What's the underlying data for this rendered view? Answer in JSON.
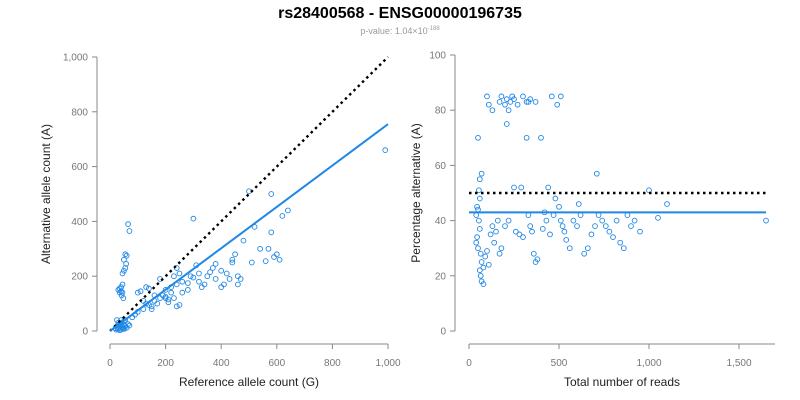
{
  "header": {
    "title": "rs28400568 - ENSG00000196735",
    "pvalue_prefix": "p-value: 1.04",
    "pvalue_times": "×",
    "pvalue_base": "10",
    "pvalue_exp": "-188"
  },
  "colors": {
    "points": "#1f87e5",
    "fit": "#1f87e5",
    "reference": "#000000",
    "axis": "#888888",
    "text": "#777777"
  },
  "chart_data": [
    {
      "type": "scatter",
      "xlabel": "Reference allele count (G)",
      "ylabel": "Alternative allele count (A)",
      "xlim": [
        0,
        1000
      ],
      "ylim": [
        0,
        1000
      ],
      "xticks": [
        0,
        200,
        400,
        600,
        800,
        1000
      ],
      "yticks": [
        0,
        200,
        400,
        600,
        800,
        1000
      ],
      "xtick_labels": [
        "0",
        "200",
        "400",
        "600",
        "800",
        "1,000"
      ],
      "ytick_labels": [
        "0",
        "200",
        "400",
        "600",
        "800",
        "1,000"
      ],
      "grid": false,
      "lines": [
        {
          "kind": "reference",
          "style": "dotted",
          "points": [
            [
              0,
              0
            ],
            [
              1000,
              1000
            ]
          ]
        },
        {
          "kind": "fit",
          "style": "solid",
          "points": [
            [
              0,
              0
            ],
            [
              1000,
              755
            ]
          ]
        }
      ],
      "points": [
        [
          20,
          10
        ],
        [
          25,
          15
        ],
        [
          28,
          8
        ],
        [
          30,
          20
        ],
        [
          32,
          12
        ],
        [
          35,
          25
        ],
        [
          38,
          18
        ],
        [
          40,
          5
        ],
        [
          42,
          30
        ],
        [
          45,
          15
        ],
        [
          48,
          10
        ],
        [
          50,
          22
        ],
        [
          52,
          8
        ],
        [
          55,
          18
        ],
        [
          60,
          12
        ],
        [
          65,
          25
        ],
        [
          70,
          20
        ],
        [
          30,
          30
        ],
        [
          22,
          5
        ],
        [
          35,
          3
        ],
        [
          45,
          8
        ],
        [
          50,
          35
        ],
        [
          40,
          40
        ],
        [
          55,
          40
        ],
        [
          25,
          40
        ],
        [
          30,
          150
        ],
        [
          35,
          155
        ],
        [
          40,
          160
        ],
        [
          45,
          170
        ],
        [
          35,
          140
        ],
        [
          42,
          130
        ],
        [
          48,
          120
        ],
        [
          50,
          220
        ],
        [
          45,
          210
        ],
        [
          55,
          230
        ],
        [
          55,
          280
        ],
        [
          60,
          275
        ],
        [
          50,
          260
        ],
        [
          58,
          245
        ],
        [
          65,
          390
        ],
        [
          70,
          365
        ],
        [
          45,
          140
        ],
        [
          40,
          145
        ],
        [
          100,
          140
        ],
        [
          110,
          145
        ],
        [
          120,
          110
        ],
        [
          130,
          160
        ],
        [
          140,
          155
        ],
        [
          150,
          90
        ],
        [
          160,
          130
        ],
        [
          180,
          190
        ],
        [
          190,
          130
        ],
        [
          200,
          120
        ],
        [
          210,
          105
        ],
        [
          220,
          140
        ],
        [
          230,
          200
        ],
        [
          240,
          230
        ],
        [
          250,
          210
        ],
        [
          230,
          120
        ],
        [
          210,
          115
        ],
        [
          240,
          90
        ],
        [
          250,
          95
        ],
        [
          200,
          150
        ],
        [
          260,
          140
        ],
        [
          280,
          150
        ],
        [
          300,
          410
        ],
        [
          300,
          195
        ],
        [
          310,
          240
        ],
        [
          320,
          180
        ],
        [
          330,
          160
        ],
        [
          340,
          170
        ],
        [
          350,
          200
        ],
        [
          360,
          215
        ],
        [
          370,
          230
        ],
        [
          380,
          245
        ],
        [
          400,
          220
        ],
        [
          420,
          210
        ],
        [
          440,
          250
        ],
        [
          450,
          280
        ],
        [
          460,
          200
        ],
        [
          470,
          190
        ],
        [
          480,
          330
        ],
        [
          500,
          510
        ],
        [
          510,
          250
        ],
        [
          520,
          380
        ],
        [
          540,
          300
        ],
        [
          560,
          255
        ],
        [
          570,
          300
        ],
        [
          580,
          360
        ],
        [
          590,
          270
        ],
        [
          600,
          280
        ],
        [
          610,
          260
        ],
        [
          620,
          420
        ],
        [
          640,
          440
        ],
        [
          580,
          500
        ],
        [
          990,
          660
        ],
        [
          80,
          50
        ],
        [
          90,
          60
        ],
        [
          100,
          70
        ],
        [
          120,
          80
        ],
        [
          140,
          95
        ],
        [
          160,
          110
        ],
        [
          170,
          100
        ],
        [
          260,
          180
        ],
        [
          280,
          175
        ],
        [
          290,
          200
        ],
        [
          320,
          210
        ],
        [
          380,
          190
        ],
        [
          400,
          160
        ],
        [
          410,
          170
        ],
        [
          430,
          190
        ],
        [
          440,
          260
        ],
        [
          460,
          170
        ],
        [
          150,
          80
        ],
        [
          130,
          100
        ],
        [
          180,
          120
        ],
        [
          200,
          125
        ],
        [
          220,
          160
        ],
        [
          240,
          170
        ]
      ]
    },
    {
      "type": "scatter",
      "xlabel": "Total number of reads",
      "ylabel": "Percentage alternative (A)",
      "xlim": [
        0,
        1700
      ],
      "ylim": [
        0,
        100
      ],
      "xticks": [
        0,
        500,
        1000,
        1500
      ],
      "yticks": [
        0,
        20,
        40,
        60,
        80,
        100
      ],
      "xtick_labels": [
        "0",
        "500",
        "1,000",
        "1,500"
      ],
      "ytick_labels": [
        "0",
        "20",
        "40",
        "60",
        "80",
        "100"
      ],
      "grid": false,
      "lines": [
        {
          "kind": "reference",
          "style": "dotted",
          "points": [
            [
              0,
              50
            ],
            [
              1650,
              50
            ]
          ]
        },
        {
          "kind": "fit",
          "style": "solid",
          "points": [
            [
              0,
              43
            ],
            [
              1650,
              43
            ]
          ]
        }
      ],
      "points": [
        [
          100,
          85
        ],
        [
          110,
          82
        ],
        [
          130,
          80
        ],
        [
          170,
          83
        ],
        [
          180,
          85
        ],
        [
          200,
          82
        ],
        [
          210,
          84
        ],
        [
          220,
          80
        ],
        [
          230,
          83
        ],
        [
          250,
          84
        ],
        [
          270,
          82
        ],
        [
          300,
          85
        ],
        [
          320,
          83
        ],
        [
          340,
          84
        ],
        [
          370,
          83
        ],
        [
          460,
          85
        ],
        [
          490,
          82
        ],
        [
          510,
          85
        ],
        [
          330,
          83
        ],
        [
          240,
          85
        ],
        [
          50,
          70
        ],
        [
          60,
          55
        ],
        [
          70,
          57
        ],
        [
          55,
          51
        ],
        [
          60,
          48
        ],
        [
          45,
          45
        ],
        [
          50,
          44
        ],
        [
          40,
          42
        ],
        [
          55,
          40
        ],
        [
          60,
          37
        ],
        [
          45,
          34
        ],
        [
          40,
          32
        ],
        [
          50,
          30
        ],
        [
          65,
          28
        ],
        [
          70,
          25
        ],
        [
          80,
          23
        ],
        [
          60,
          22
        ],
        [
          65,
          20
        ],
        [
          70,
          18
        ],
        [
          80,
          17
        ],
        [
          90,
          27
        ],
        [
          100,
          29
        ],
        [
          110,
          24
        ],
        [
          120,
          35
        ],
        [
          140,
          32
        ],
        [
          150,
          36
        ],
        [
          130,
          38
        ],
        [
          160,
          40
        ],
        [
          170,
          28
        ],
        [
          180,
          30
        ],
        [
          200,
          38
        ],
        [
          210,
          75
        ],
        [
          220,
          40
        ],
        [
          250,
          52
        ],
        [
          260,
          36
        ],
        [
          280,
          35
        ],
        [
          290,
          52
        ],
        [
          300,
          34
        ],
        [
          320,
          70
        ],
        [
          330,
          42
        ],
        [
          340,
          38
        ],
        [
          350,
          36
        ],
        [
          360,
          28
        ],
        [
          370,
          25
        ],
        [
          380,
          26
        ],
        [
          400,
          70
        ],
        [
          410,
          37
        ],
        [
          420,
          43
        ],
        [
          430,
          40
        ],
        [
          440,
          52
        ],
        [
          450,
          35
        ],
        [
          470,
          42
        ],
        [
          480,
          48
        ],
        [
          500,
          45
        ],
        [
          510,
          40
        ],
        [
          520,
          38
        ],
        [
          530,
          36
        ],
        [
          540,
          33
        ],
        [
          560,
          30
        ],
        [
          580,
          40
        ],
        [
          600,
          38
        ],
        [
          610,
          46
        ],
        [
          620,
          42
        ],
        [
          640,
          28
        ],
        [
          660,
          30
        ],
        [
          680,
          35
        ],
        [
          700,
          38
        ],
        [
          710,
          57
        ],
        [
          720,
          42
        ],
        [
          740,
          40
        ],
        [
          760,
          38
        ],
        [
          780,
          36
        ],
        [
          800,
          34
        ],
        [
          820,
          40
        ],
        [
          840,
          32
        ],
        [
          860,
          30
        ],
        [
          880,
          42
        ],
        [
          900,
          38
        ],
        [
          920,
          40
        ],
        [
          950,
          36
        ],
        [
          1000,
          51
        ],
        [
          1050,
          41
        ],
        [
          1100,
          46
        ],
        [
          1650,
          40
        ]
      ]
    }
  ]
}
